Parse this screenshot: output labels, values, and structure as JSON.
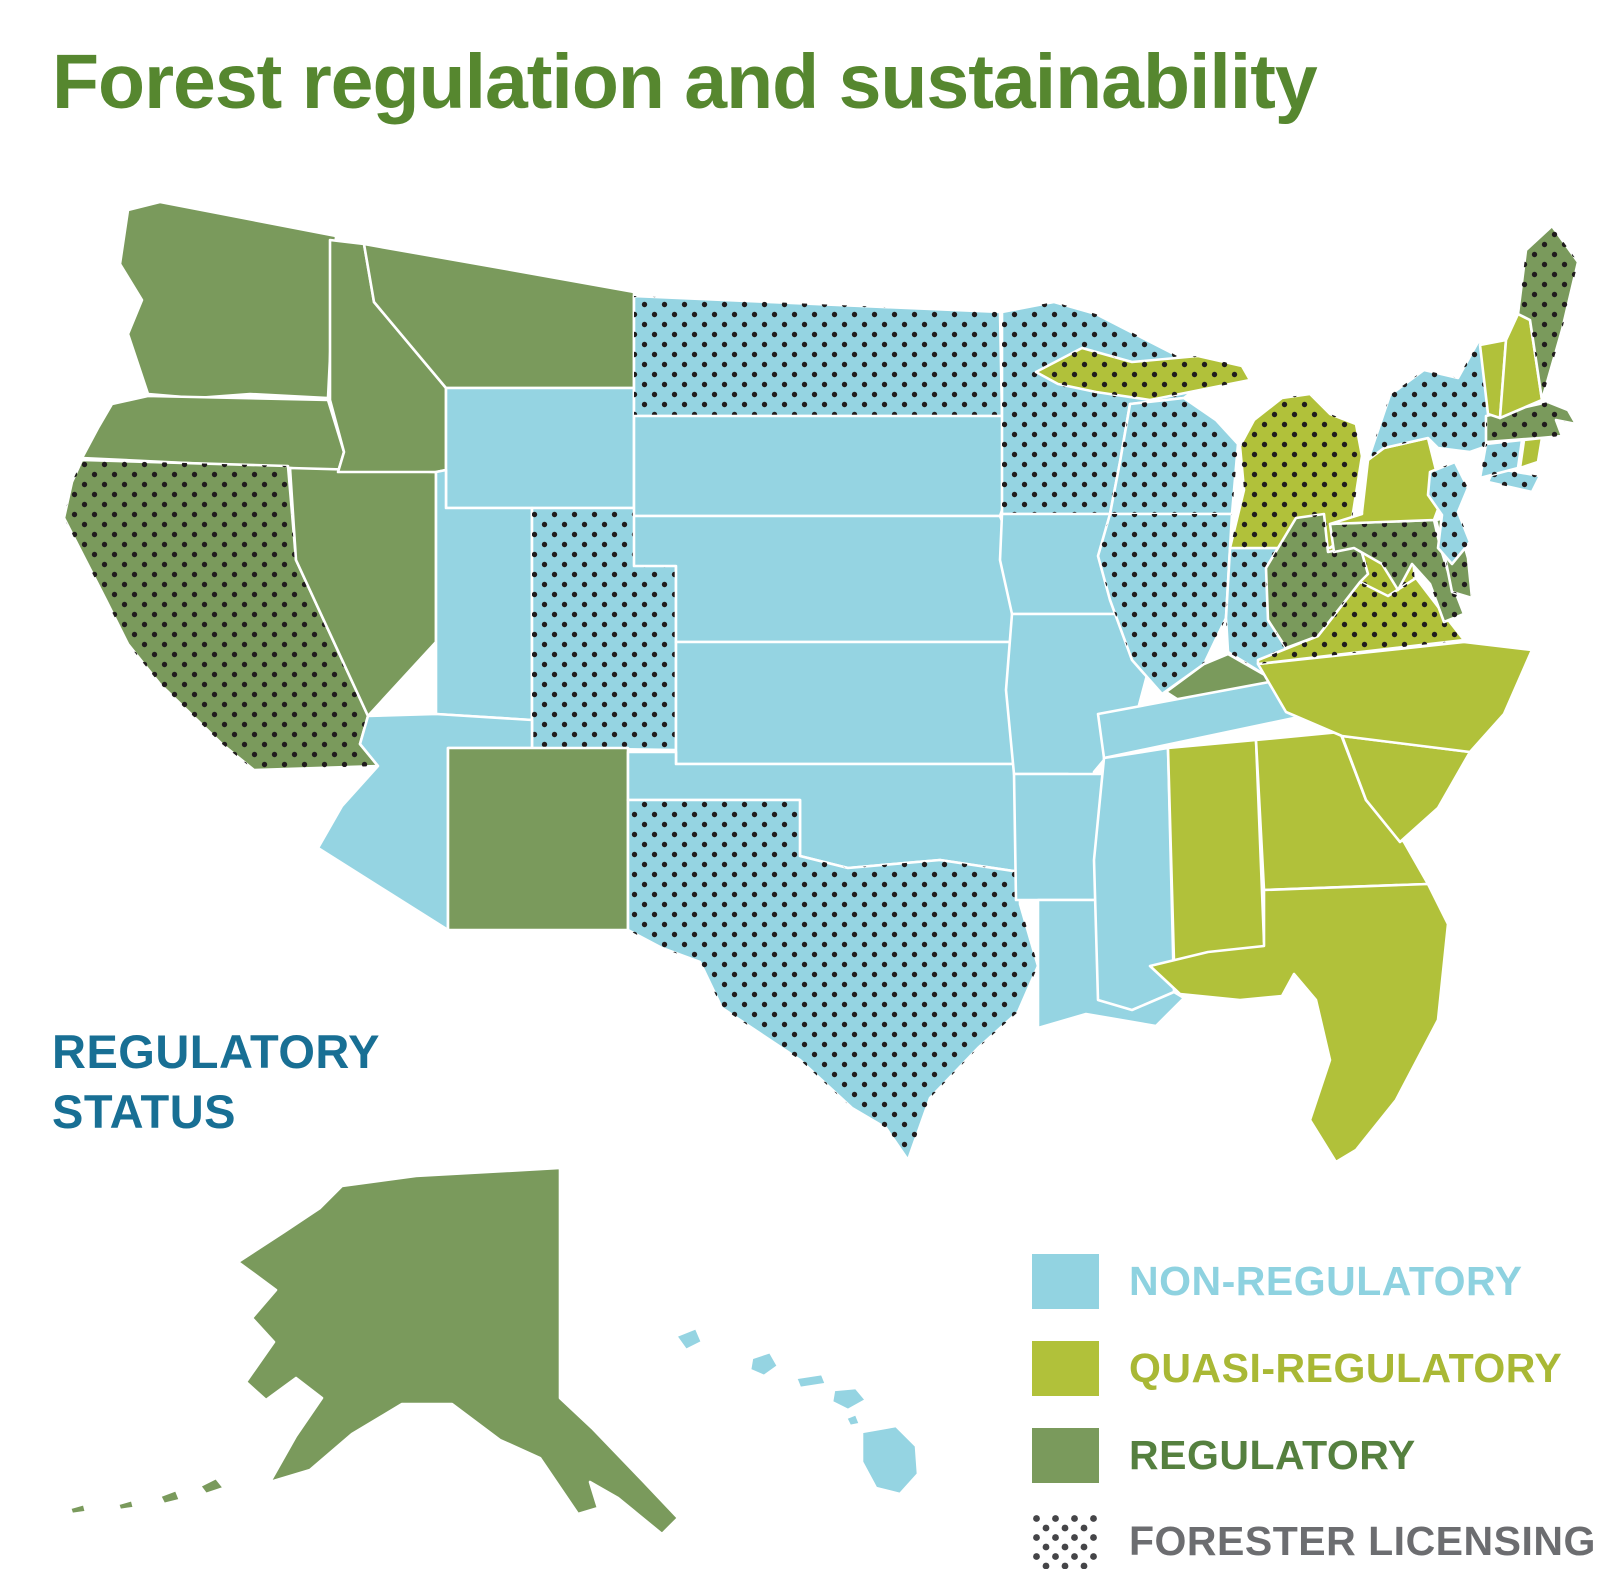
{
  "title": "Forest regulation and sustainability",
  "map_heading": "REGULATORY STATUS",
  "legend": {
    "items": [
      {
        "key": "non-regulatory",
        "label": "NON-REGULATORY",
        "swatch": "#92d3e1",
        "label_color": "#8ed2e0",
        "type": "fill"
      },
      {
        "key": "quasi-regulatory",
        "label": "QUASI-REGULATORY",
        "swatch": "#b1c13a",
        "label_color": "#a9b835",
        "type": "fill"
      },
      {
        "key": "regulatory",
        "label": "REGULATORY",
        "swatch": "#7a9a5c",
        "label_color": "#55803f",
        "type": "fill"
      },
      {
        "key": "forester-licensing",
        "label": "FORESTER LICENSING",
        "swatch": "#4a4a4d",
        "label_color": "#6c6d70",
        "type": "dots"
      }
    ]
  },
  "colors": {
    "non-regulatory": "#95d4e2",
    "quasi-regulatory": "#b1c13a",
    "regulatory": "#7a9a5c",
    "dot": "#201c1d",
    "state-border": "#ffffff"
  },
  "map": {
    "states": [
      {
        "id": "wa",
        "name": "Washington",
        "status": "regulatory",
        "forester_licensing": false
      },
      {
        "id": "or",
        "name": "Oregon",
        "status": "regulatory",
        "forester_licensing": false
      },
      {
        "id": "ca",
        "name": "California",
        "status": "regulatory",
        "forester_licensing": true
      },
      {
        "id": "nv",
        "name": "Nevada",
        "status": "regulatory",
        "forester_licensing": false
      },
      {
        "id": "id",
        "name": "Idaho",
        "status": "regulatory",
        "forester_licensing": false
      },
      {
        "id": "mt",
        "name": "Montana",
        "status": "regulatory",
        "forester_licensing": false
      },
      {
        "id": "wy",
        "name": "Wyoming",
        "status": "non-regulatory",
        "forester_licensing": false
      },
      {
        "id": "ut",
        "name": "Utah",
        "status": "non-regulatory",
        "forester_licensing": false
      },
      {
        "id": "co",
        "name": "Colorado",
        "status": "non-regulatory",
        "forester_licensing": true
      },
      {
        "id": "az",
        "name": "Arizona",
        "status": "non-regulatory",
        "forester_licensing": false
      },
      {
        "id": "nm",
        "name": "New Mexico",
        "status": "regulatory",
        "forester_licensing": false
      },
      {
        "id": "nd",
        "name": "North Dakota",
        "status": "non-regulatory",
        "forester_licensing": true
      },
      {
        "id": "sd",
        "name": "South Dakota",
        "status": "non-regulatory",
        "forester_licensing": false
      },
      {
        "id": "ne",
        "name": "Nebraska",
        "status": "non-regulatory",
        "forester_licensing": false
      },
      {
        "id": "ks",
        "name": "Kansas",
        "status": "non-regulatory",
        "forester_licensing": false
      },
      {
        "id": "ok",
        "name": "Oklahoma",
        "status": "non-regulatory",
        "forester_licensing": false
      },
      {
        "id": "tx",
        "name": "Texas",
        "status": "non-regulatory",
        "forester_licensing": true
      },
      {
        "id": "mn",
        "name": "Minnesota",
        "status": "non-regulatory",
        "forester_licensing": true
      },
      {
        "id": "ia",
        "name": "Iowa",
        "status": "non-regulatory",
        "forester_licensing": false
      },
      {
        "id": "mo",
        "name": "Missouri",
        "status": "non-regulatory",
        "forester_licensing": false
      },
      {
        "id": "ar",
        "name": "Arkansas",
        "status": "non-regulatory",
        "forester_licensing": false
      },
      {
        "id": "la",
        "name": "Louisiana",
        "status": "non-regulatory",
        "forester_licensing": false
      },
      {
        "id": "wi",
        "name": "Wisconsin",
        "status": "non-regulatory",
        "forester_licensing": true
      },
      {
        "id": "il",
        "name": "Illinois",
        "status": "non-regulatory",
        "forester_licensing": true
      },
      {
        "id": "in",
        "name": "Indiana",
        "status": "non-regulatory",
        "forester_licensing": true
      },
      {
        "id": "mi",
        "name": "Michigan",
        "status": "quasi-regulatory",
        "forester_licensing": true
      },
      {
        "id": "oh",
        "name": "Ohio",
        "status": "quasi-regulatory",
        "forester_licensing": true
      },
      {
        "id": "ky",
        "name": "Kentucky",
        "status": "regulatory",
        "forester_licensing": false
      },
      {
        "id": "tn",
        "name": "Tennessee",
        "status": "non-regulatory",
        "forester_licensing": false
      },
      {
        "id": "ms",
        "name": "Mississippi",
        "status": "non-regulatory",
        "forester_licensing": false
      },
      {
        "id": "al",
        "name": "Alabama",
        "status": "quasi-regulatory",
        "forester_licensing": false
      },
      {
        "id": "ga",
        "name": "Georgia",
        "status": "quasi-regulatory",
        "forester_licensing": false
      },
      {
        "id": "fl",
        "name": "Florida",
        "status": "quasi-regulatory",
        "forester_licensing": false
      },
      {
        "id": "sc",
        "name": "South Carolina",
        "status": "quasi-regulatory",
        "forester_licensing": false
      },
      {
        "id": "nc",
        "name": "North Carolina",
        "status": "quasi-regulatory",
        "forester_licensing": false
      },
      {
        "id": "va",
        "name": "Virginia",
        "status": "quasi-regulatory",
        "forester_licensing": true
      },
      {
        "id": "wv",
        "name": "West Virginia",
        "status": "regulatory",
        "forester_licensing": true
      },
      {
        "id": "md",
        "name": "Maryland",
        "status": "regulatory",
        "forester_licensing": true
      },
      {
        "id": "de",
        "name": "Delaware",
        "status": "regulatory",
        "forester_licensing": true
      },
      {
        "id": "pa",
        "name": "Pennsylvania",
        "status": "quasi-regulatory",
        "forester_licensing": false
      },
      {
        "id": "nj",
        "name": "New Jersey",
        "status": "non-regulatory",
        "forester_licensing": true
      },
      {
        "id": "ny",
        "name": "New York",
        "status": "non-regulatory",
        "forester_licensing": true
      },
      {
        "id": "ct",
        "name": "Connecticut",
        "status": "non-regulatory",
        "forester_licensing": true
      },
      {
        "id": "ri",
        "name": "Rhode Island",
        "status": "quasi-regulatory",
        "forester_licensing": false
      },
      {
        "id": "ma",
        "name": "Massachusetts",
        "status": "regulatory",
        "forester_licensing": true
      },
      {
        "id": "vt",
        "name": "Vermont",
        "status": "quasi-regulatory",
        "forester_licensing": false
      },
      {
        "id": "nh",
        "name": "New Hampshire",
        "status": "quasi-regulatory",
        "forester_licensing": false
      },
      {
        "id": "me",
        "name": "Maine",
        "status": "regulatory",
        "forester_licensing": true
      },
      {
        "id": "ak",
        "name": "Alaska",
        "status": "regulatory",
        "forester_licensing": false
      },
      {
        "id": "hi",
        "name": "Hawaii",
        "status": "non-regulatory",
        "forester_licensing": false
      }
    ]
  }
}
